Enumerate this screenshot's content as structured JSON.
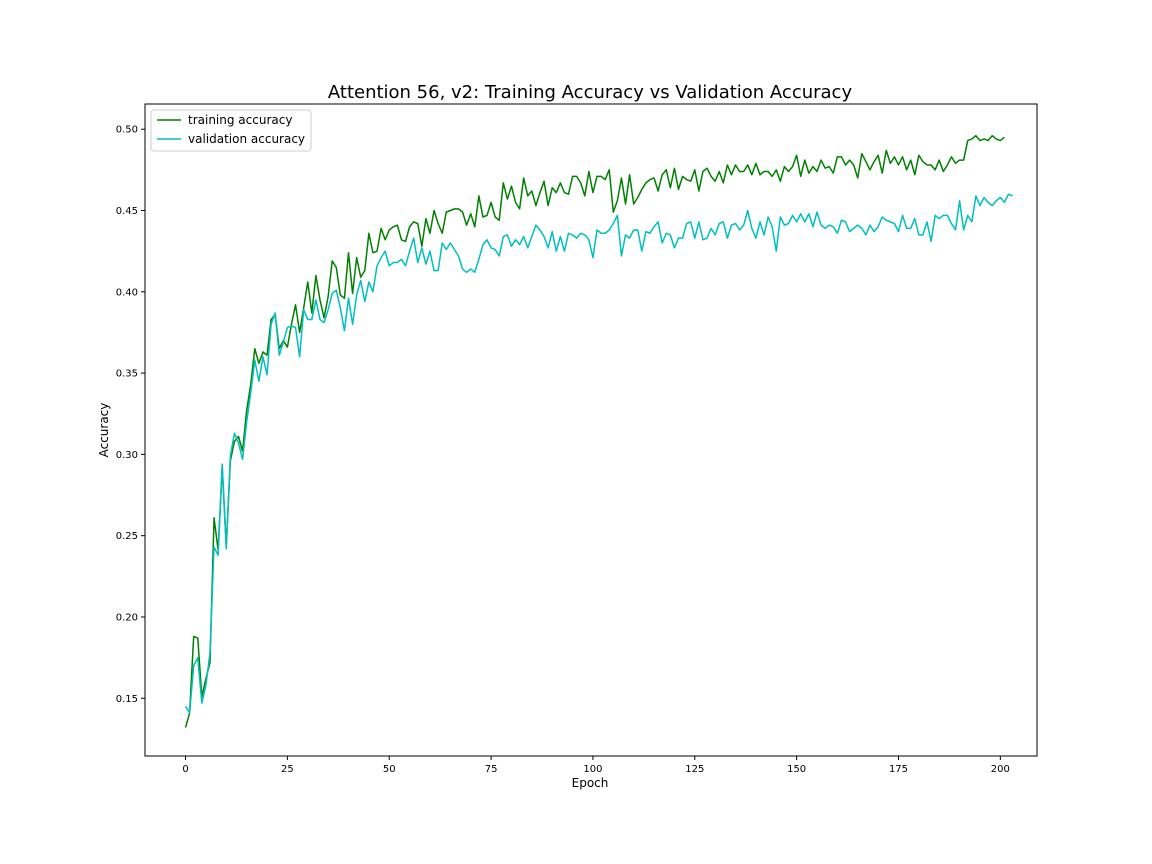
{
  "chart_data": {
    "type": "line",
    "title": "Attention 56, v2: Training Accuracy vs Validation Accuracy",
    "xlabel": "Epoch",
    "ylabel": "Accuracy",
    "xlim": [
      -9.95,
      209
    ],
    "ylim": [
      0.1145,
      0.5155
    ],
    "xticks": [
      0,
      25,
      50,
      75,
      100,
      125,
      150,
      175,
      200
    ],
    "yticks": [
      0.15,
      0.2,
      0.25,
      0.3,
      0.35,
      0.4,
      0.45,
      0.5
    ],
    "xtick_labels": [
      "0",
      "25",
      "50",
      "75",
      "100",
      "125",
      "150",
      "175",
      "200"
    ],
    "ytick_labels": [
      "0.15",
      "0.20",
      "0.25",
      "0.30",
      "0.35",
      "0.40",
      "0.45",
      "0.50"
    ],
    "legend": {
      "position": "upper-left"
    },
    "series": [
      {
        "name": "training accuracy",
        "color": "#008000",
        "values": [
          0.132,
          0.141,
          0.188,
          0.187,
          0.151,
          0.162,
          0.172,
          0.261,
          0.241,
          0.292,
          0.244,
          0.296,
          0.308,
          0.311,
          0.302,
          0.327,
          0.343,
          0.365,
          0.356,
          0.363,
          0.361,
          0.383,
          0.386,
          0.365,
          0.37,
          0.366,
          0.38,
          0.392,
          0.375,
          0.39,
          0.406,
          0.387,
          0.41,
          0.395,
          0.384,
          0.397,
          0.419,
          0.415,
          0.398,
          0.396,
          0.424,
          0.399,
          0.421,
          0.409,
          0.413,
          0.436,
          0.424,
          0.425,
          0.439,
          0.432,
          0.438,
          0.44,
          0.441,
          0.432,
          0.431,
          0.44,
          0.443,
          0.442,
          0.428,
          0.445,
          0.436,
          0.45,
          0.442,
          0.436,
          0.449,
          0.45,
          0.451,
          0.451,
          0.449,
          0.441,
          0.448,
          0.44,
          0.459,
          0.446,
          0.447,
          0.455,
          0.446,
          0.444,
          0.467,
          0.457,
          0.465,
          0.455,
          0.451,
          0.47,
          0.459,
          0.462,
          0.453,
          0.461,
          0.468,
          0.453,
          0.464,
          0.461,
          0.467,
          0.461,
          0.46,
          0.471,
          0.471,
          0.467,
          0.459,
          0.474,
          0.461,
          0.471,
          0.471,
          0.469,
          0.475,
          0.449,
          0.456,
          0.47,
          0.454,
          0.472,
          0.454,
          0.458,
          0.463,
          0.467,
          0.469,
          0.47,
          0.462,
          0.472,
          0.475,
          0.464,
          0.476,
          0.463,
          0.471,
          0.469,
          0.468,
          0.475,
          0.462,
          0.474,
          0.476,
          0.471,
          0.468,
          0.474,
          0.467,
          0.478,
          0.472,
          0.478,
          0.474,
          0.474,
          0.478,
          0.472,
          0.479,
          0.472,
          0.474,
          0.474,
          0.471,
          0.475,
          0.468,
          0.477,
          0.474,
          0.477,
          0.484,
          0.471,
          0.481,
          0.473,
          0.477,
          0.474,
          0.481,
          0.476,
          0.477,
          0.473,
          0.483,
          0.483,
          0.478,
          0.481,
          0.478,
          0.47,
          0.485,
          0.48,
          0.475,
          0.48,
          0.484,
          0.473,
          0.487,
          0.479,
          0.483,
          0.478,
          0.483,
          0.475,
          0.481,
          0.472,
          0.484,
          0.48,
          0.478,
          0.478,
          0.475,
          0.481,
          0.474,
          0.478,
          0.483,
          0.479,
          0.481,
          0.481,
          0.493,
          0.494,
          0.496,
          0.493,
          0.494,
          0.493,
          0.496,
          0.494,
          0.493,
          0.495
        ]
      },
      {
        "name": "validation accuracy",
        "color": "#00BFBF",
        "values": [
          0.145,
          0.141,
          0.17,
          0.175,
          0.147,
          0.158,
          0.178,
          0.243,
          0.238,
          0.294,
          0.242,
          0.299,
          0.313,
          0.307,
          0.297,
          0.32,
          0.338,
          0.358,
          0.345,
          0.36,
          0.349,
          0.38,
          0.387,
          0.361,
          0.369,
          0.378,
          0.379,
          0.378,
          0.36,
          0.389,
          0.383,
          0.383,
          0.395,
          0.383,
          0.381,
          0.389,
          0.399,
          0.401,
          0.39,
          0.376,
          0.396,
          0.38,
          0.398,
          0.407,
          0.394,
          0.406,
          0.4,
          0.416,
          0.421,
          0.425,
          0.416,
          0.418,
          0.418,
          0.42,
          0.416,
          0.425,
          0.433,
          0.418,
          0.427,
          0.417,
          0.425,
          0.413,
          0.413,
          0.43,
          0.426,
          0.43,
          0.426,
          0.422,
          0.414,
          0.412,
          0.414,
          0.412,
          0.42,
          0.429,
          0.432,
          0.427,
          0.426,
          0.422,
          0.434,
          0.435,
          0.428,
          0.432,
          0.429,
          0.434,
          0.427,
          0.434,
          0.441,
          0.438,
          0.434,
          0.427,
          0.437,
          0.425,
          0.434,
          0.425,
          0.436,
          0.435,
          0.433,
          0.436,
          0.435,
          0.432,
          0.421,
          0.438,
          0.436,
          0.436,
          0.438,
          0.442,
          0.447,
          0.422,
          0.435,
          0.433,
          0.438,
          0.438,
          0.425,
          0.437,
          0.436,
          0.44,
          0.443,
          0.43,
          0.436,
          0.435,
          0.427,
          0.433,
          0.433,
          0.442,
          0.443,
          0.433,
          0.443,
          0.432,
          0.433,
          0.439,
          0.435,
          0.442,
          0.443,
          0.433,
          0.441,
          0.442,
          0.438,
          0.441,
          0.45,
          0.439,
          0.433,
          0.443,
          0.435,
          0.446,
          0.44,
          0.425,
          0.446,
          0.441,
          0.442,
          0.447,
          0.443,
          0.448,
          0.443,
          0.448,
          0.44,
          0.449,
          0.441,
          0.439,
          0.441,
          0.44,
          0.436,
          0.444,
          0.443,
          0.437,
          0.439,
          0.441,
          0.439,
          0.435,
          0.441,
          0.437,
          0.44,
          0.446,
          0.444,
          0.443,
          0.442,
          0.437,
          0.447,
          0.439,
          0.439,
          0.445,
          0.435,
          0.435,
          0.443,
          0.431,
          0.447,
          0.445,
          0.447,
          0.447,
          0.442,
          0.438,
          0.456,
          0.438,
          0.447,
          0.443,
          0.459,
          0.453,
          0.458,
          0.455,
          0.453,
          0.456,
          0.458,
          0.455,
          0.46,
          0.459
        ]
      }
    ]
  }
}
